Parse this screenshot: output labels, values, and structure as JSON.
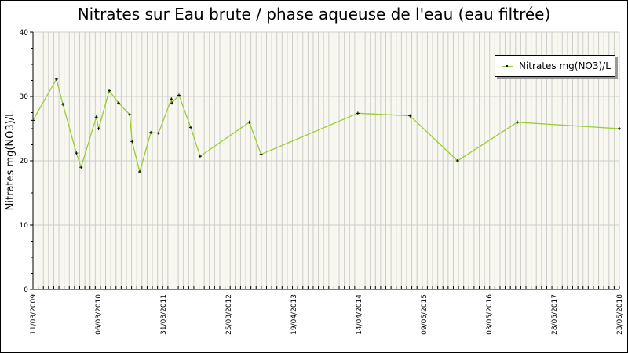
{
  "chart_data": {
    "type": "line",
    "title": "Nitrates sur Eau brute / phase aqueuse de l'eau (eau filtrée)",
    "xlabel": "",
    "ylabel": "Nitrates mg(NO3)/L",
    "ylim": [
      0,
      40
    ],
    "yticks": [
      0,
      10,
      20,
      30,
      40
    ],
    "xtick_labels": [
      "11/03/2009",
      "06/03/2010",
      "31/03/2011",
      "25/03/2012",
      "19/04/2013",
      "14/04/2014",
      "09/05/2015",
      "03/05/2016",
      "28/05/2017",
      "23/05/2018"
    ],
    "grid": true,
    "legend_position": "top-right",
    "series": [
      {
        "name": "Nitrates mg(NO3)/L",
        "color": "#9acd32",
        "x_frac": [
          0.0,
          0.04,
          0.051,
          0.074,
          0.082,
          0.108,
          0.112,
          0.13,
          0.146,
          0.165,
          0.169,
          0.182,
          0.201,
          0.214,
          0.236,
          0.237,
          0.249,
          0.269,
          0.285,
          0.369,
          0.389,
          0.554,
          0.643,
          0.724,
          0.826,
          1.0
        ],
        "values": [
          26.3,
          32.7,
          28.8,
          21.2,
          19.0,
          26.8,
          25.0,
          30.9,
          29.0,
          27.2,
          23.0,
          18.3,
          24.4,
          24.3,
          29.6,
          29.0,
          30.2,
          25.2,
          20.7,
          26.0,
          21.0,
          27.4,
          27.0,
          20.0,
          26.0,
          25.0
        ]
      }
    ]
  },
  "legend": {
    "label": "Nitrates mg(NO3)/L"
  },
  "colors": {
    "plot_bg": "#f8f8f0",
    "grid": "#cccccc",
    "line": "#9acd32",
    "marker": "#000000"
  }
}
